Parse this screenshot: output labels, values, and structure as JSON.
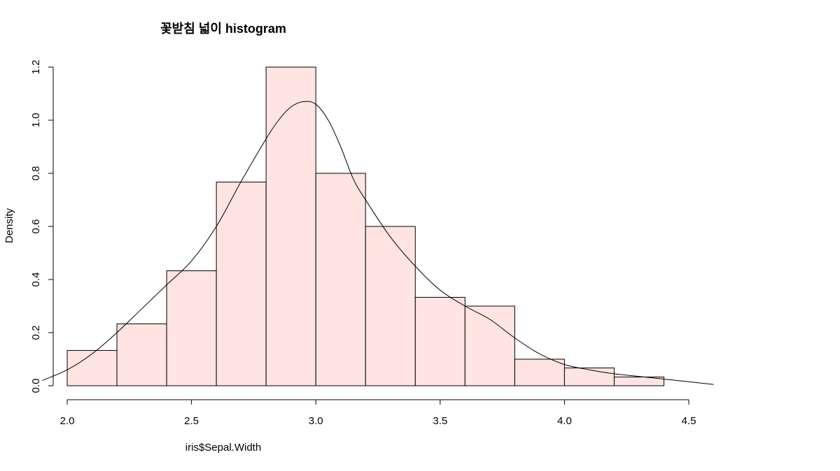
{
  "chart_data": {
    "type": "bar",
    "title": "꽃받침 넓이 histogram",
    "xlabel": "iris$Sepal.Width",
    "ylabel": "Density",
    "xlim": [
      1.9,
      4.6
    ],
    "ylim": [
      0.0,
      1.2
    ],
    "x_ticks": [
      "2.0",
      "2.5",
      "3.0",
      "3.5",
      "4.0",
      "4.5"
    ],
    "y_ticks": [
      "0.0",
      "0.2",
      "0.4",
      "0.6",
      "0.8",
      "1.0",
      "1.2"
    ],
    "grid": false,
    "bar_color": "#ffe4e1",
    "bar_stroke": "#000000",
    "bins": [
      {
        "x0": 2.0,
        "x1": 2.2,
        "density": 0.133
      },
      {
        "x0": 2.2,
        "x1": 2.4,
        "density": 0.233
      },
      {
        "x0": 2.4,
        "x1": 2.6,
        "density": 0.433
      },
      {
        "x0": 2.6,
        "x1": 2.8,
        "density": 0.767
      },
      {
        "x0": 2.8,
        "x1": 3.0,
        "density": 1.2
      },
      {
        "x0": 3.0,
        "x1": 3.2,
        "density": 0.8
      },
      {
        "x0": 3.2,
        "x1": 3.4,
        "density": 0.6
      },
      {
        "x0": 3.4,
        "x1": 3.6,
        "density": 0.333
      },
      {
        "x0": 3.6,
        "x1": 3.8,
        "density": 0.3
      },
      {
        "x0": 3.8,
        "x1": 4.0,
        "density": 0.1
      },
      {
        "x0": 4.0,
        "x1": 4.2,
        "density": 0.067
      },
      {
        "x0": 4.2,
        "x1": 4.4,
        "density": 0.033
      }
    ],
    "density_curve": {
      "color": "#000000",
      "x": [
        1.9,
        2.0,
        2.1,
        2.2,
        2.3,
        2.4,
        2.5,
        2.6,
        2.7,
        2.8,
        2.85,
        2.9,
        2.95,
        3.0,
        3.05,
        3.1,
        3.15,
        3.2,
        3.3,
        3.4,
        3.5,
        3.6,
        3.7,
        3.8,
        3.9,
        4.0,
        4.1,
        4.2,
        4.3,
        4.4,
        4.5,
        4.6
      ],
      "y": [
        0.02,
        0.06,
        0.12,
        0.2,
        0.29,
        0.38,
        0.47,
        0.6,
        0.77,
        0.93,
        1.0,
        1.05,
        1.07,
        1.06,
        1.0,
        0.9,
        0.78,
        0.7,
        0.56,
        0.45,
        0.36,
        0.3,
        0.25,
        0.18,
        0.12,
        0.08,
        0.06,
        0.045,
        0.035,
        0.025,
        0.015,
        0.005
      ]
    }
  }
}
